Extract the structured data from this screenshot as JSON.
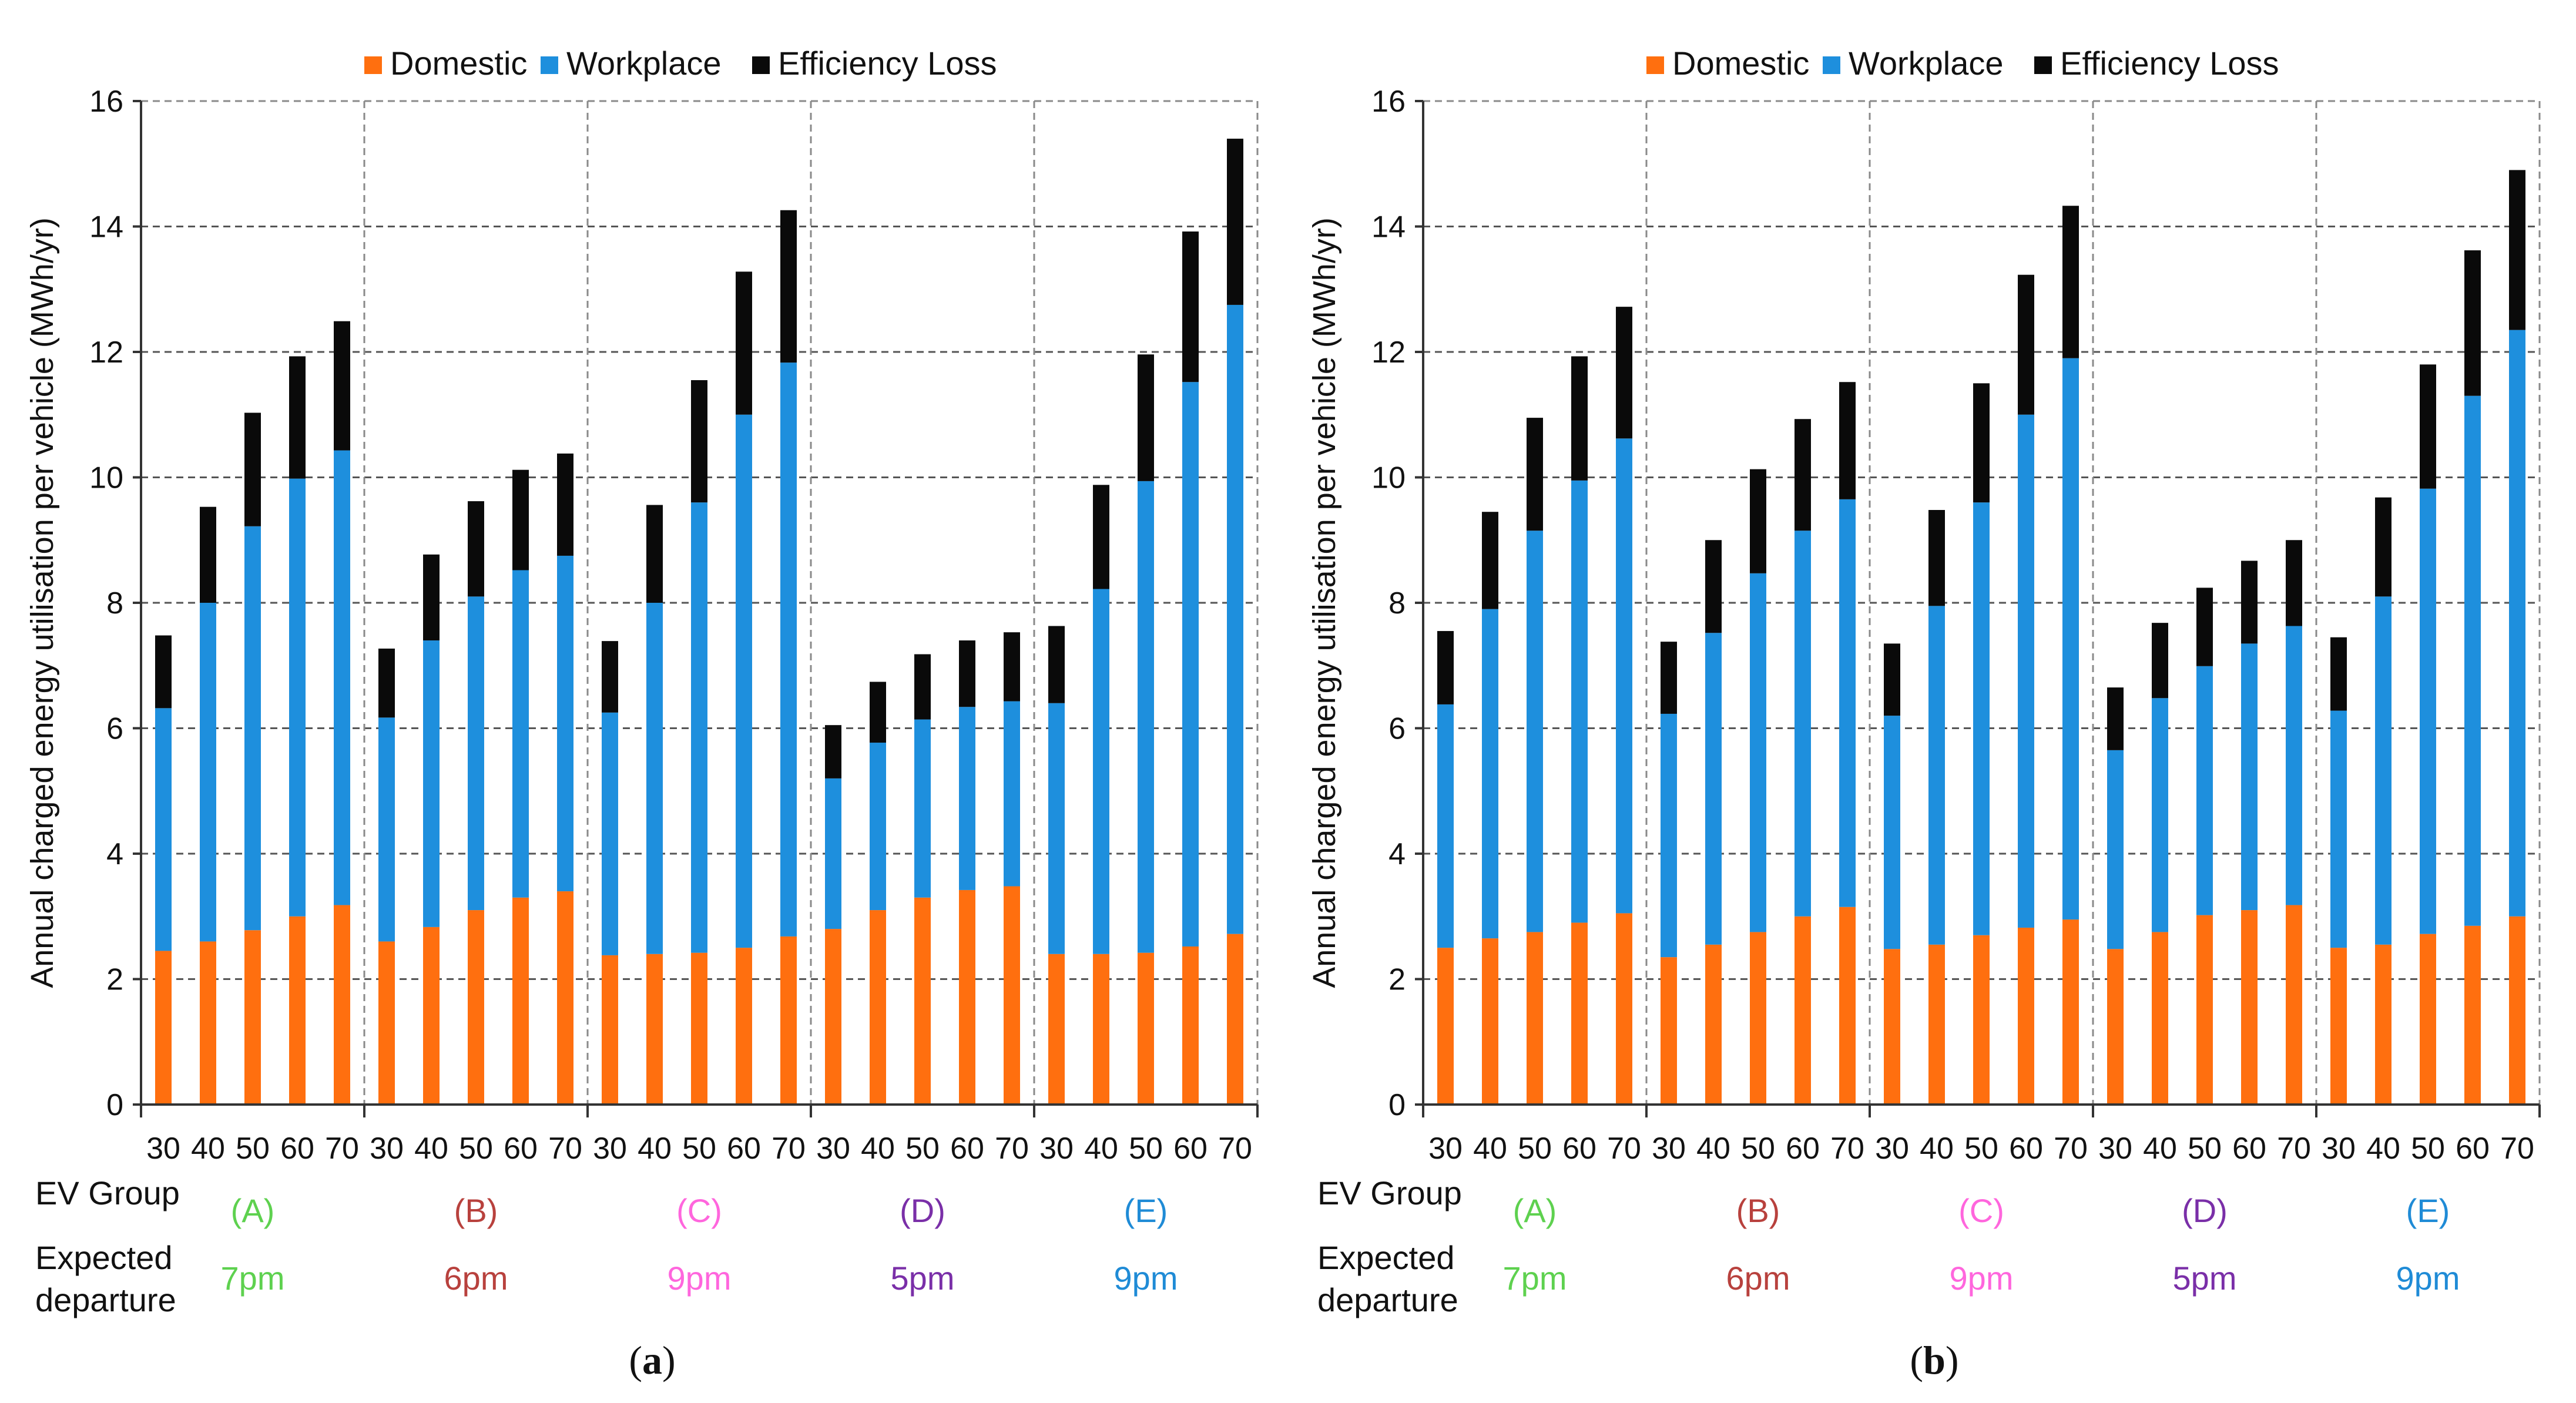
{
  "colors": {
    "domestic": "#ff6f0f",
    "workplace": "#1e8fdd",
    "loss": "#0a0a0a",
    "groupA": "#5ed14f",
    "groupB": "#b8413d",
    "groupC": "#ff66dd",
    "groupD": "#7a2fa8",
    "groupE": "#1f8bd6",
    "grid": "#555555",
    "text": "#111111"
  },
  "legend": [
    "Domestic",
    "Workplace",
    "Efficiency Loss"
  ],
  "row_labels": {
    "ev_group": "EV Group",
    "expected_line1": "Expected",
    "expected_line2": "departure"
  },
  "groups": [
    {
      "id": "(A)",
      "departure": "7pm",
      "color_key": "groupA"
    },
    {
      "id": "(B)",
      "departure": "6pm",
      "color_key": "groupB"
    },
    {
      "id": "(C)",
      "departure": "9pm",
      "color_key": "groupC"
    },
    {
      "id": "(D)",
      "departure": "5pm",
      "color_key": "groupD"
    },
    {
      "id": "(E)",
      "departure": "9pm",
      "color_key": "groupE"
    }
  ],
  "chart_data": [
    {
      "type": "bar",
      "stacked": true,
      "caption": "(a)",
      "caption_letter": "a",
      "ylabel": "Annual charged energy utilisation per vehicle (MWh/yr)",
      "ylim": [
        0,
        16
      ],
      "yticks": [
        0,
        2,
        4,
        6,
        8,
        10,
        12,
        14,
        16
      ],
      "grid": true,
      "legend_position": "top",
      "categories": [
        "30",
        "40",
        "50",
        "60",
        "70",
        "30",
        "40",
        "50",
        "60",
        "70",
        "30",
        "40",
        "50",
        "60",
        "70",
        "30",
        "40",
        "50",
        "60",
        "70",
        "30",
        "40",
        "50",
        "60",
        "70"
      ],
      "series": [
        {
          "name": "Domestic",
          "values": [
            2.45,
            2.6,
            2.78,
            3.0,
            3.18,
            2.6,
            2.83,
            3.1,
            3.3,
            3.4,
            2.38,
            2.4,
            2.42,
            2.5,
            2.68,
            2.8,
            3.1,
            3.3,
            3.42,
            3.48,
            2.4,
            2.4,
            2.42,
            2.52,
            2.72
          ]
        },
        {
          "name": "Workplace",
          "values": [
            3.87,
            5.4,
            6.44,
            6.98,
            7.25,
            3.57,
            4.57,
            5.0,
            5.22,
            5.35,
            3.87,
            5.6,
            7.18,
            8.5,
            9.15,
            2.4,
            2.67,
            2.84,
            2.92,
            2.95,
            4.0,
            5.82,
            7.52,
            9.0,
            10.03
          ]
        },
        {
          "name": "Efficiency Loss",
          "values": [
            1.16,
            1.53,
            1.81,
            1.95,
            2.06,
            1.1,
            1.37,
            1.52,
            1.6,
            1.63,
            1.14,
            1.56,
            1.95,
            2.28,
            2.43,
            0.85,
            0.97,
            1.04,
            1.06,
            1.1,
            1.23,
            1.66,
            2.02,
            2.4,
            2.65
          ]
        }
      ]
    },
    {
      "type": "bar",
      "stacked": true,
      "caption": "(b)",
      "caption_letter": "b",
      "ylabel": "Annual charged energy utilisation per vehicle (MWh/yr)",
      "ylim": [
        0,
        16
      ],
      "yticks": [
        0,
        2,
        4,
        6,
        8,
        10,
        12,
        14,
        16
      ],
      "grid": true,
      "legend_position": "top",
      "categories": [
        "30",
        "40",
        "50",
        "60",
        "70",
        "30",
        "40",
        "50",
        "60",
        "70",
        "30",
        "40",
        "50",
        "60",
        "70",
        "30",
        "40",
        "50",
        "60",
        "70",
        "30",
        "40",
        "50",
        "60",
        "70"
      ],
      "series": [
        {
          "name": "Domestic",
          "values": [
            2.5,
            2.65,
            2.75,
            2.9,
            3.05,
            2.35,
            2.55,
            2.75,
            3.0,
            3.15,
            2.48,
            2.55,
            2.7,
            2.82,
            2.95,
            2.48,
            2.75,
            3.02,
            3.1,
            3.18,
            2.5,
            2.55,
            2.72,
            2.85,
            3.0
          ]
        },
        {
          "name": "Workplace",
          "values": [
            3.88,
            5.25,
            6.4,
            7.05,
            7.57,
            3.88,
            4.97,
            5.72,
            6.15,
            6.5,
            3.72,
            5.4,
            6.9,
            8.18,
            8.95,
            3.17,
            3.73,
            3.97,
            4.25,
            4.45,
            3.78,
            5.55,
            7.1,
            8.45,
            9.35
          ]
        },
        {
          "name": "Efficiency Loss",
          "values": [
            1.17,
            1.55,
            1.8,
            1.98,
            2.1,
            1.15,
            1.48,
            1.66,
            1.78,
            1.87,
            1.15,
            1.53,
            1.9,
            2.23,
            2.43,
            1.0,
            1.2,
            1.25,
            1.32,
            1.37,
            1.17,
            1.58,
            1.98,
            2.32,
            2.55
          ]
        }
      ]
    }
  ]
}
